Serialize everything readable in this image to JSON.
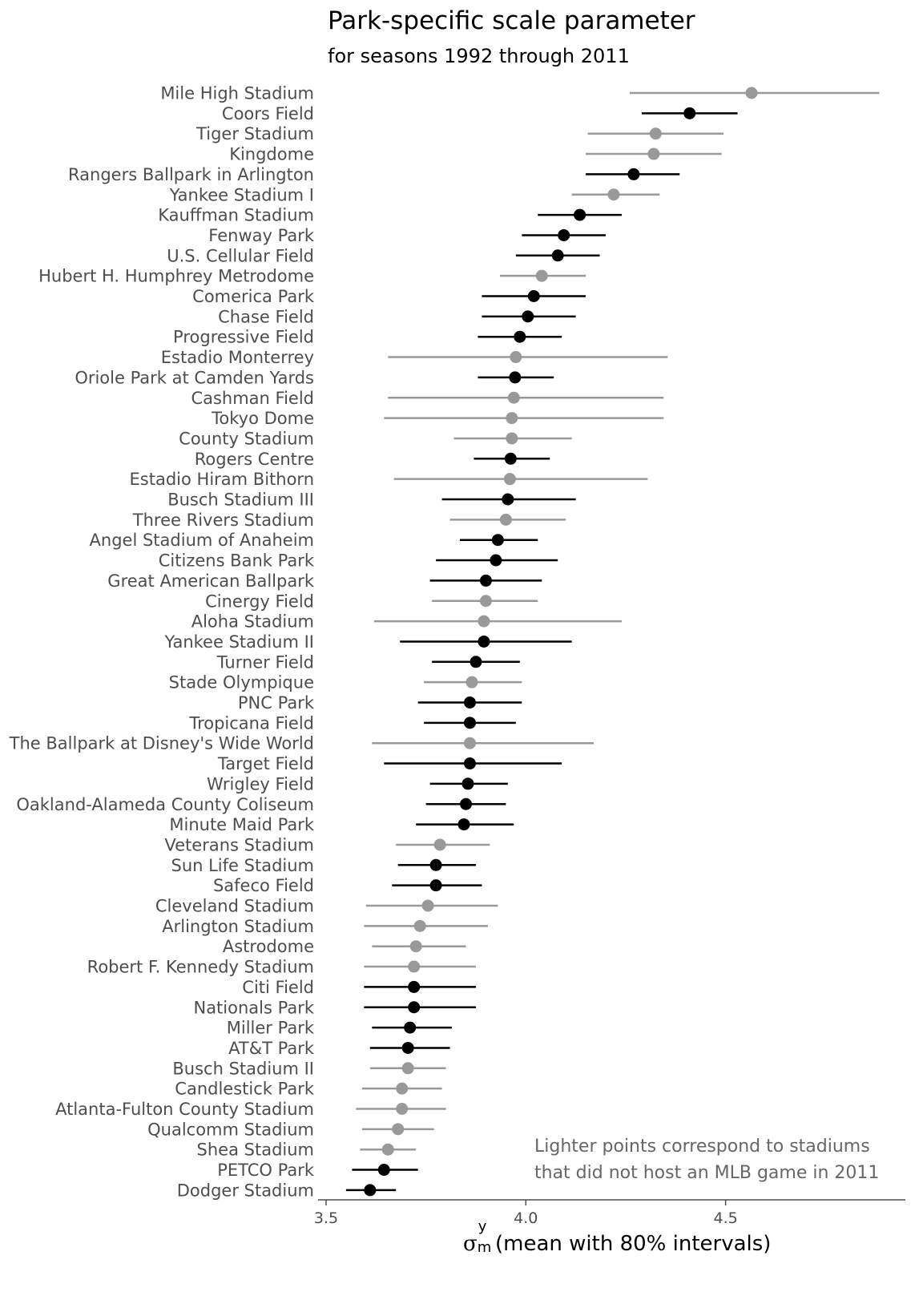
{
  "chart_data": {
    "type": "scatter",
    "title": "Park-specific scale parameter",
    "subtitle": "for seasons 1992 through 2011",
    "xlabel": {
      "symbol": "σ",
      "sup": "y",
      "sub": "m",
      "text": " (mean with 80% intervals)"
    },
    "x_ticks": [
      {
        "value": 3.5,
        "label": "3.5"
      },
      {
        "value": 4.0,
        "label": "4.0"
      },
      {
        "value": 4.5,
        "label": "4.5"
      }
    ],
    "xlim": [
      3.48,
      4.95
    ],
    "grid": false,
    "annotation": [
      "Lighter points correspond to stadiums",
      "that did not host an MLB game in 2011"
    ],
    "colors": {
      "hosted_2011": "#000000",
      "not_hosted_2011": "#999999"
    },
    "series": [
      {
        "name": "Mile High Stadium",
        "mean": 4.565,
        "low": 4.26,
        "high": 4.885,
        "hosted_2011": false
      },
      {
        "name": "Coors Field",
        "mean": 4.41,
        "low": 4.29,
        "high": 4.53,
        "hosted_2011": true
      },
      {
        "name": "Tiger Stadium",
        "mean": 4.325,
        "low": 4.155,
        "high": 4.495,
        "hosted_2011": false
      },
      {
        "name": "Kingdome",
        "mean": 4.32,
        "low": 4.15,
        "high": 4.49,
        "hosted_2011": false
      },
      {
        "name": "Rangers Ballpark in Arlington",
        "mean": 4.27,
        "low": 4.15,
        "high": 4.385,
        "hosted_2011": true
      },
      {
        "name": "Yankee Stadium I",
        "mean": 4.22,
        "low": 4.115,
        "high": 4.335,
        "hosted_2011": false
      },
      {
        "name": "Kauffman Stadium",
        "mean": 4.135,
        "low": 4.03,
        "high": 4.24,
        "hosted_2011": true
      },
      {
        "name": "Fenway Park",
        "mean": 4.095,
        "low": 3.99,
        "high": 4.2,
        "hosted_2011": true
      },
      {
        "name": "U.S. Cellular Field",
        "mean": 4.08,
        "low": 3.975,
        "high": 4.185,
        "hosted_2011": true
      },
      {
        "name": "Hubert H. Humphrey Metrodome",
        "mean": 4.04,
        "low": 3.935,
        "high": 4.15,
        "hosted_2011": false
      },
      {
        "name": "Comerica Park",
        "mean": 4.02,
        "low": 3.89,
        "high": 4.15,
        "hosted_2011": true
      },
      {
        "name": "Chase Field",
        "mean": 4.005,
        "low": 3.89,
        "high": 4.125,
        "hosted_2011": true
      },
      {
        "name": "Progressive Field",
        "mean": 3.985,
        "low": 3.88,
        "high": 4.09,
        "hosted_2011": true
      },
      {
        "name": "Estadio Monterrey",
        "mean": 3.975,
        "low": 3.655,
        "high": 4.355,
        "hosted_2011": false
      },
      {
        "name": "Oriole Park at Camden Yards",
        "mean": 3.973,
        "low": 3.88,
        "high": 4.07,
        "hosted_2011": true
      },
      {
        "name": "Cashman Field",
        "mean": 3.97,
        "low": 3.655,
        "high": 4.345,
        "hosted_2011": false
      },
      {
        "name": "Tokyo Dome",
        "mean": 3.965,
        "low": 3.645,
        "high": 4.345,
        "hosted_2011": false
      },
      {
        "name": "County Stadium",
        "mean": 3.965,
        "low": 3.82,
        "high": 4.115,
        "hosted_2011": false
      },
      {
        "name": "Rogers Centre",
        "mean": 3.962,
        "low": 3.87,
        "high": 4.06,
        "hosted_2011": true
      },
      {
        "name": "Estadio Hiram Bithorn",
        "mean": 3.96,
        "low": 3.67,
        "high": 4.305,
        "hosted_2011": false
      },
      {
        "name": "Busch Stadium III",
        "mean": 3.955,
        "low": 3.79,
        "high": 4.125,
        "hosted_2011": true
      },
      {
        "name": "Three Rivers Stadium",
        "mean": 3.95,
        "low": 3.81,
        "high": 4.1,
        "hosted_2011": false
      },
      {
        "name": "Angel Stadium of Anaheim",
        "mean": 3.93,
        "low": 3.835,
        "high": 4.03,
        "hosted_2011": true
      },
      {
        "name": "Citizens Bank Park",
        "mean": 3.925,
        "low": 3.775,
        "high": 4.08,
        "hosted_2011": true
      },
      {
        "name": "Great American Ballpark",
        "mean": 3.9,
        "low": 3.76,
        "high": 4.04,
        "hosted_2011": true
      },
      {
        "name": "Cinergy Field",
        "mean": 3.9,
        "low": 3.765,
        "high": 4.03,
        "hosted_2011": false
      },
      {
        "name": "Aloha Stadium",
        "mean": 3.895,
        "low": 3.62,
        "high": 4.24,
        "hosted_2011": false
      },
      {
        "name": "Yankee Stadium II",
        "mean": 3.895,
        "low": 3.685,
        "high": 4.115,
        "hosted_2011": true
      },
      {
        "name": "Turner Field",
        "mean": 3.875,
        "low": 3.765,
        "high": 3.985,
        "hosted_2011": true
      },
      {
        "name": "Stade Olympique",
        "mean": 3.865,
        "low": 3.745,
        "high": 3.99,
        "hosted_2011": false
      },
      {
        "name": "PNC Park",
        "mean": 3.86,
        "low": 3.73,
        "high": 3.99,
        "hosted_2011": true
      },
      {
        "name": "Tropicana Field",
        "mean": 3.86,
        "low": 3.745,
        "high": 3.975,
        "hosted_2011": true
      },
      {
        "name": "The Ballpark at Disney's Wide World",
        "mean": 3.86,
        "low": 3.615,
        "high": 4.17,
        "hosted_2011": false
      },
      {
        "name": "Target Field",
        "mean": 3.86,
        "low": 3.645,
        "high": 4.09,
        "hosted_2011": true
      },
      {
        "name": "Wrigley Field",
        "mean": 3.855,
        "low": 3.76,
        "high": 3.955,
        "hosted_2011": true
      },
      {
        "name": "Oakland-Alameda County Coliseum",
        "mean": 3.85,
        "low": 3.75,
        "high": 3.95,
        "hosted_2011": true
      },
      {
        "name": "Minute Maid Park",
        "mean": 3.845,
        "low": 3.725,
        "high": 3.97,
        "hosted_2011": true
      },
      {
        "name": "Veterans Stadium",
        "mean": 3.785,
        "low": 3.675,
        "high": 3.91,
        "hosted_2011": false
      },
      {
        "name": "Sun Life Stadium",
        "mean": 3.775,
        "low": 3.68,
        "high": 3.875,
        "hosted_2011": true
      },
      {
        "name": "Safeco Field",
        "mean": 3.775,
        "low": 3.665,
        "high": 3.89,
        "hosted_2011": true
      },
      {
        "name": "Cleveland Stadium",
        "mean": 3.755,
        "low": 3.6,
        "high": 3.93,
        "hosted_2011": false
      },
      {
        "name": "Arlington Stadium",
        "mean": 3.735,
        "low": 3.595,
        "high": 3.905,
        "hosted_2011": false
      },
      {
        "name": "Astrodome",
        "mean": 3.725,
        "low": 3.615,
        "high": 3.85,
        "hosted_2011": false
      },
      {
        "name": "Robert F. Kennedy Stadium",
        "mean": 3.72,
        "low": 3.595,
        "high": 3.875,
        "hosted_2011": false
      },
      {
        "name": "Citi Field",
        "mean": 3.72,
        "low": 3.595,
        "high": 3.875,
        "hosted_2011": true
      },
      {
        "name": "Nationals Park",
        "mean": 3.72,
        "low": 3.595,
        "high": 3.875,
        "hosted_2011": true
      },
      {
        "name": "Miller Park",
        "mean": 3.71,
        "low": 3.615,
        "high": 3.815,
        "hosted_2011": true
      },
      {
        "name": "AT&T Park",
        "mean": 3.705,
        "low": 3.61,
        "high": 3.81,
        "hosted_2011": true
      },
      {
        "name": "Busch Stadium II",
        "mean": 3.705,
        "low": 3.61,
        "high": 3.8,
        "hosted_2011": false
      },
      {
        "name": "Candlestick Park",
        "mean": 3.69,
        "low": 3.59,
        "high": 3.79,
        "hosted_2011": false
      },
      {
        "name": "Atlanta-Fulton County Stadium",
        "mean": 3.69,
        "low": 3.575,
        "high": 3.8,
        "hosted_2011": false
      },
      {
        "name": "Qualcomm Stadium",
        "mean": 3.68,
        "low": 3.59,
        "high": 3.77,
        "hosted_2011": false
      },
      {
        "name": "Shea Stadium",
        "mean": 3.655,
        "low": 3.585,
        "high": 3.725,
        "hosted_2011": false
      },
      {
        "name": "PETCO Park",
        "mean": 3.645,
        "low": 3.565,
        "high": 3.73,
        "hosted_2011": true
      },
      {
        "name": "Dodger Stadium",
        "mean": 3.61,
        "low": 3.55,
        "high": 3.675,
        "hosted_2011": true
      }
    ]
  }
}
